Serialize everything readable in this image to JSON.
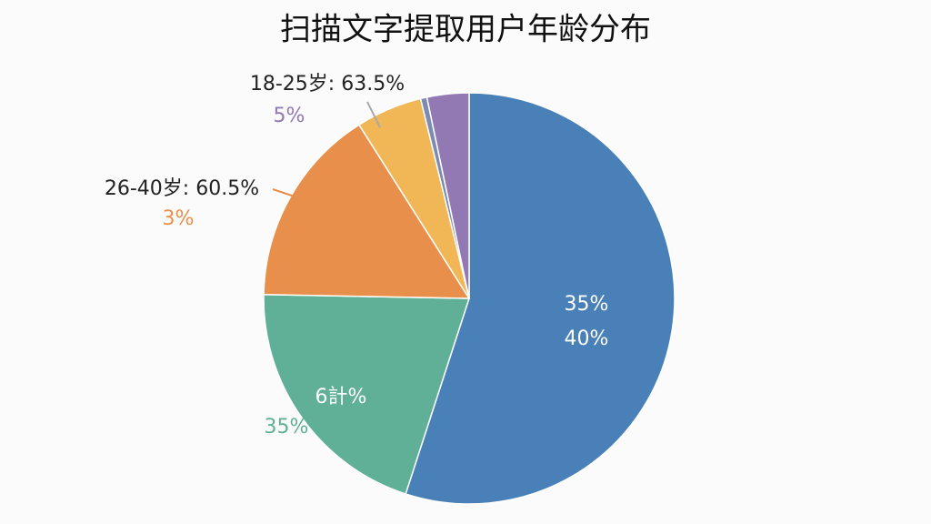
{
  "chart_data": {
    "type": "pie",
    "title": "扫描文字提取用户年龄分布",
    "values": [
      55,
      20.3,
      15.7,
      5.2,
      0.5,
      3.3
    ],
    "colors": [
      "#4a80b8",
      "#5fb096",
      "#e8904b",
      "#f1b655",
      "#7b8bb2",
      "#9379b4"
    ],
    "annotations": [
      "18-25岁: 63.5%",
      "5%",
      "26-40岁: 60.5%",
      "3%",
      "35%",
      "40%",
      "6計%",
      "35%"
    ],
    "annotation_colors": [
      "#222222",
      "#9379b4",
      "#222222",
      "#e8904b",
      "#ffffff",
      "#ffffff",
      "#ffffff",
      "#5fb096"
    ]
  }
}
